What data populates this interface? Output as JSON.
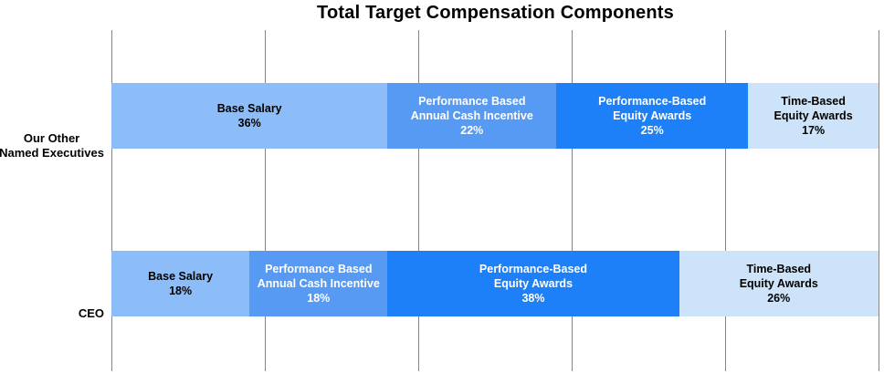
{
  "chart_data": {
    "type": "bar",
    "orientation": "horizontal",
    "stacked": true,
    "title": "Total Target Compensation Components",
    "xlabel": "",
    "ylabel": "",
    "xlim": [
      0,
      100
    ],
    "gridlines_percent": [
      0,
      20,
      40,
      60,
      80,
      100
    ],
    "grid": true,
    "legend": "none",
    "categories": [
      "Our Other Named Executives",
      "CEO"
    ],
    "series": [
      {
        "name": "Base Salary",
        "values": [
          36,
          18
        ]
      },
      {
        "name": "Performance Based Annual Cash Incentive",
        "values": [
          22,
          18
        ]
      },
      {
        "name": "Performance-Based Equity Awards",
        "values": [
          25,
          38
        ]
      },
      {
        "name": "Time-Based Equity Awards",
        "values": [
          17,
          26
        ]
      }
    ],
    "colors": {
      "base_salary": "#8CBDF8",
      "annual_cash_incentive": "#569AF3",
      "performance_equity": "#1E80F8",
      "time_equity": "#CDE3FA",
      "gridline": "#858585",
      "dark_text": "#000000",
      "light_text": "#FFFFFF"
    },
    "rows": [
      {
        "label_lines": [
          "Our Other",
          "Named Executives"
        ],
        "segments": [
          {
            "lines": [
              "Base Salary",
              "36%"
            ],
            "value": 36,
            "color_key": "base_salary",
            "text": "dark"
          },
          {
            "lines": [
              "Performance Based",
              "Annual Cash Incentive",
              "22%"
            ],
            "value": 22,
            "color_key": "annual_cash_incentive",
            "text": "light"
          },
          {
            "lines": [
              "Performance-Based",
              "Equity Awards",
              "25%"
            ],
            "value": 25,
            "color_key": "performance_equity",
            "text": "light"
          },
          {
            "lines": [
              "Time-Based",
              "Equity Awards",
              "17%"
            ],
            "value": 17,
            "color_key": "time_equity",
            "text": "dark"
          }
        ]
      },
      {
        "label_lines": [
          "CEO"
        ],
        "segments": [
          {
            "lines": [
              "Base Salary",
              "18%"
            ],
            "value": 18,
            "color_key": "base_salary",
            "text": "dark"
          },
          {
            "lines": [
              "Performance Based",
              "Annual Cash Incentive",
              "18%"
            ],
            "value": 18,
            "color_key": "annual_cash_incentive",
            "text": "light"
          },
          {
            "lines": [
              "Performance-Based",
              "Equity Awards",
              "38%"
            ],
            "value": 38,
            "color_key": "performance_equity",
            "text": "light"
          },
          {
            "lines": [
              "Time-Based",
              "Equity Awards",
              "26%"
            ],
            "value": 26,
            "color_key": "time_equity",
            "text": "dark"
          }
        ]
      }
    ]
  }
}
